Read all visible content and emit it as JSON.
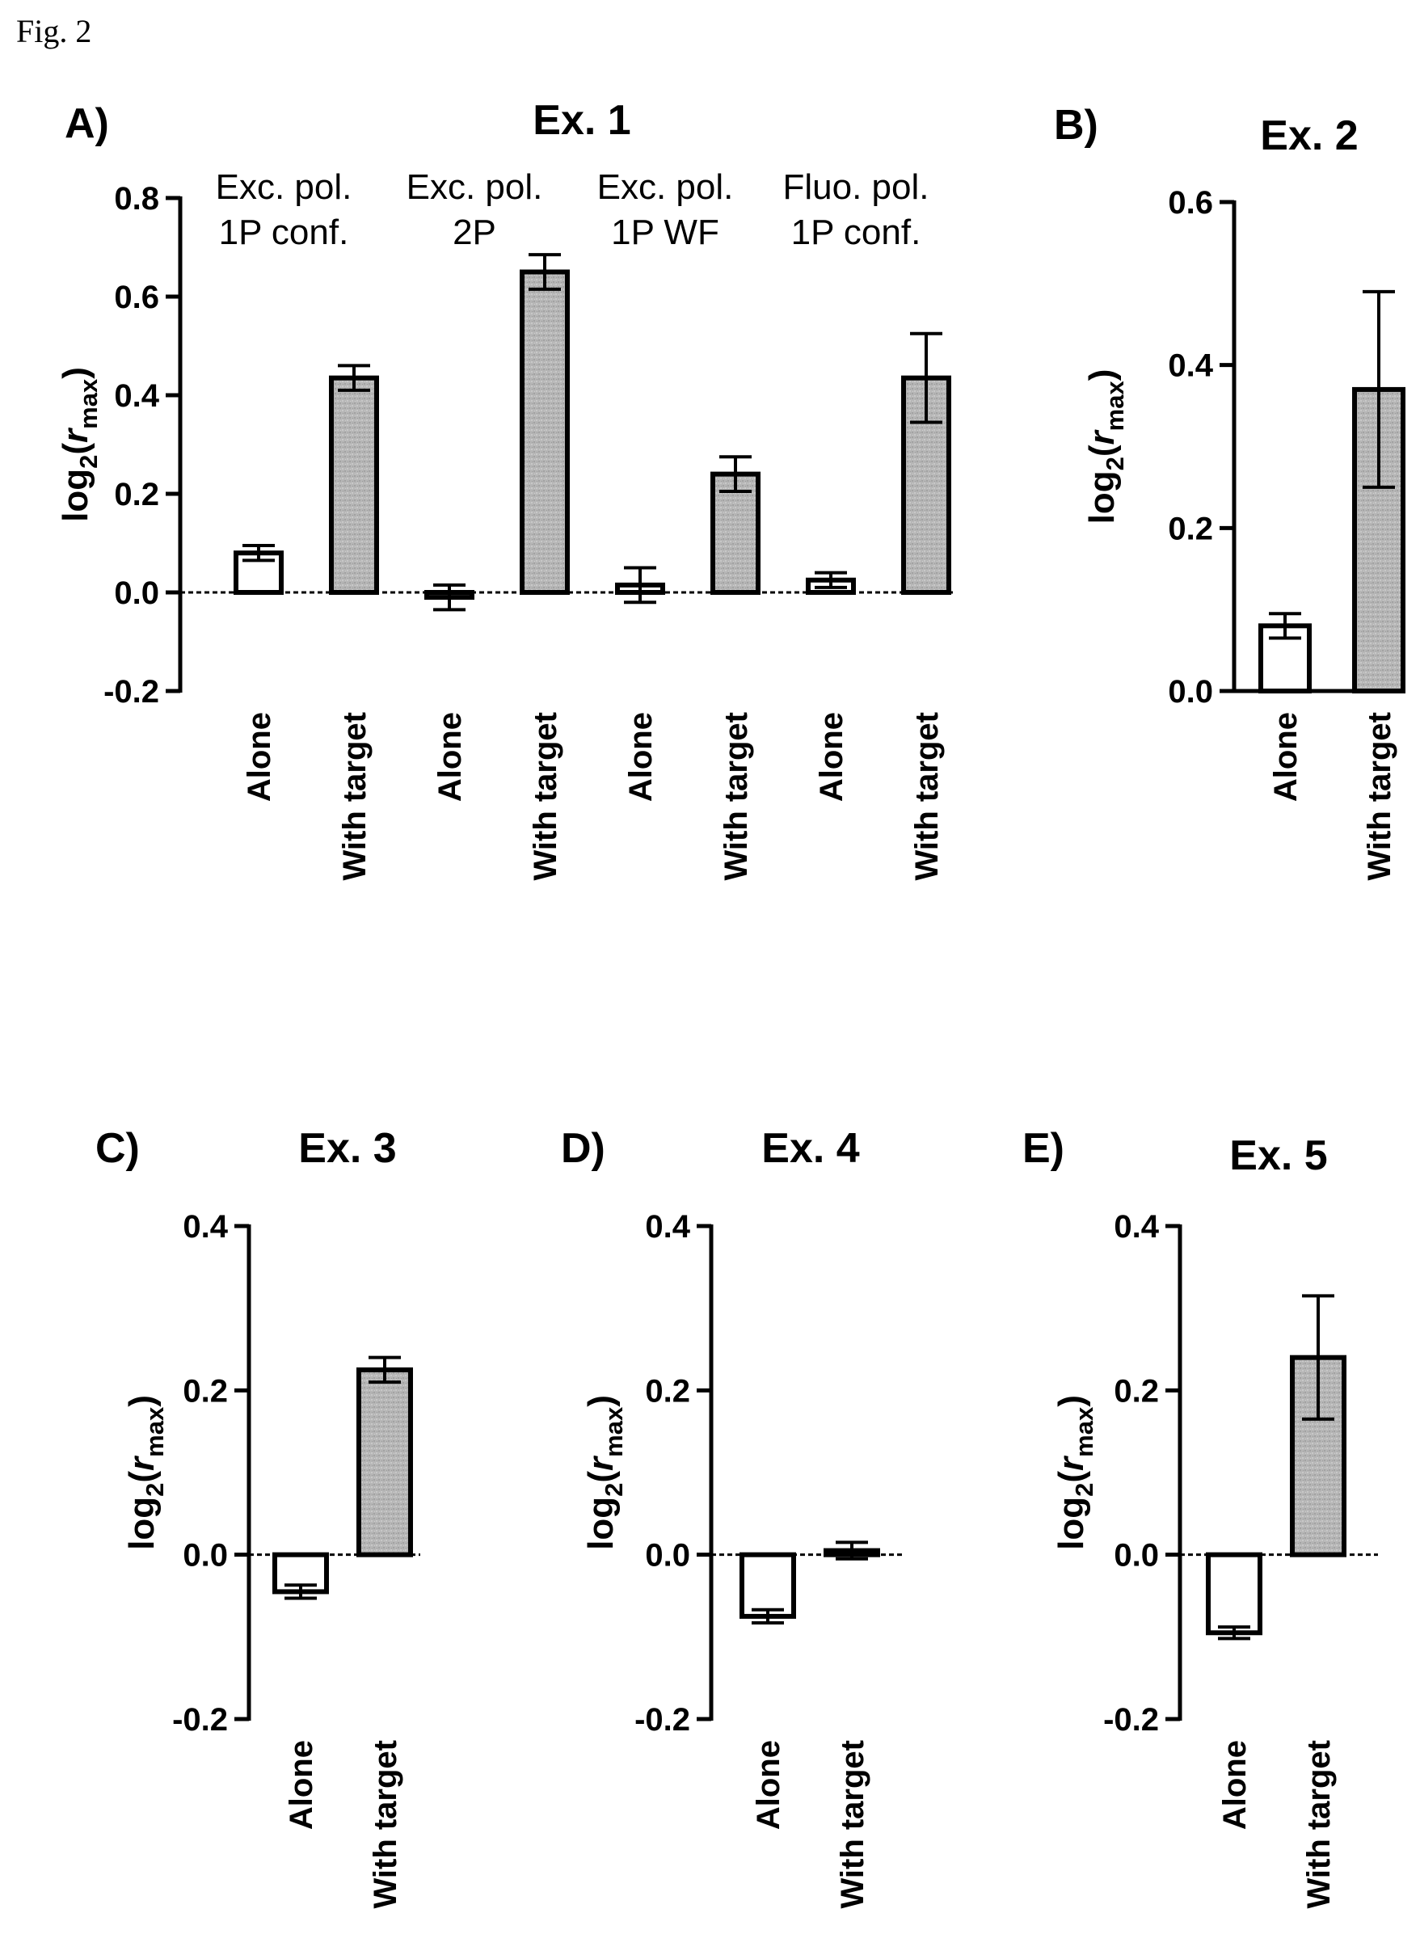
{
  "figure_label": "Fig. 2",
  "chart_data": [
    {
      "type": "bar",
      "panel": "A)",
      "title": "Ex. 1",
      "ylabel": {
        "prefix": "log",
        "sub": "2",
        "open": "(",
        "var": "r",
        "var_sub": "max",
        "close": ")"
      },
      "ylim": [
        -0.2,
        0.8
      ],
      "yticks": [
        -0.2,
        0.0,
        0.2,
        0.4,
        0.6,
        0.8
      ],
      "tick_labels": [
        "-0.2",
        "0.0",
        "0.2",
        "0.4",
        "0.6",
        "0.8"
      ],
      "baseline_dashed": true,
      "groups": [
        {
          "label_lines": [
            "Exc. pol.",
            "1P conf."
          ],
          "categories": [
            "Alone",
            "With target"
          ],
          "values": [
            0.08,
            0.435
          ],
          "errors": [
            0.015,
            0.025
          ]
        },
        {
          "label_lines": [
            "Exc. pol.",
            "2P"
          ],
          "categories": [
            "Alone",
            "With target"
          ],
          "values": [
            -0.01,
            0.65
          ],
          "errors": [
            0.025,
            0.035
          ]
        },
        {
          "label_lines": [
            "Exc. pol.",
            "1P WF"
          ],
          "categories": [
            "Alone",
            "With target"
          ],
          "values": [
            0.015,
            0.24
          ],
          "errors": [
            0.035,
            0.035
          ]
        },
        {
          "label_lines": [
            "Fluo. pol.",
            "1P conf."
          ],
          "categories": [
            "Alone",
            "With target"
          ],
          "values": [
            0.025,
            0.435
          ],
          "errors": [
            0.015,
            0.09
          ]
        }
      ],
      "series_fill": {
        "Alone": "#ffffff",
        "With target": "#b4b4b4"
      }
    },
    {
      "type": "bar",
      "panel": "B)",
      "title": "Ex. 2",
      "ylabel": {
        "prefix": "log",
        "sub": "2",
        "open": "(",
        "var": "r",
        "var_sub": "max",
        "close": ")"
      },
      "ylim": [
        0.0,
        0.6
      ],
      "yticks": [
        0.0,
        0.2,
        0.4,
        0.6
      ],
      "tick_labels": [
        "0.0",
        "0.2",
        "0.4",
        "0.6"
      ],
      "baseline_dashed": false,
      "groups": [
        {
          "label_lines": [],
          "categories": [
            "Alone",
            "With target"
          ],
          "values": [
            0.08,
            0.37
          ],
          "errors": [
            0.015,
            0.12
          ]
        }
      ],
      "series_fill": {
        "Alone": "#ffffff",
        "With target": "#b4b4b4"
      }
    },
    {
      "type": "bar",
      "panel": "C)",
      "title": "Ex. 3",
      "ylabel": {
        "prefix": "log",
        "sub": "2",
        "open": "(",
        "var": "r",
        "var_sub": "max",
        "close": ")"
      },
      "ylim": [
        -0.2,
        0.4
      ],
      "yticks": [
        -0.2,
        0.0,
        0.2,
        0.4
      ],
      "tick_labels": [
        "-0.2",
        "0.0",
        "0.2",
        "0.4"
      ],
      "baseline_dashed": true,
      "groups": [
        {
          "label_lines": [],
          "categories": [
            "Alone",
            "With target"
          ],
          "values": [
            -0.045,
            0.225
          ],
          "errors": [
            0.008,
            0.015
          ]
        }
      ],
      "series_fill": {
        "Alone": "#ffffff",
        "With target": "#b4b4b4"
      }
    },
    {
      "type": "bar",
      "panel": "D)",
      "title": "Ex. 4",
      "ylabel": {
        "prefix": "log",
        "sub": "2",
        "open": "(",
        "var": "r",
        "var_sub": "max",
        "close": ")"
      },
      "ylim": [
        -0.2,
        0.4
      ],
      "yticks": [
        -0.2,
        0.0,
        0.2,
        0.4
      ],
      "tick_labels": [
        "-0.2",
        "0.0",
        "0.2",
        "0.4"
      ],
      "baseline_dashed": true,
      "groups": [
        {
          "label_lines": [],
          "categories": [
            "Alone",
            "With target"
          ],
          "values": [
            -0.075,
            0.005
          ],
          "errors": [
            0.008,
            0.01
          ]
        }
      ],
      "series_fill": {
        "Alone": "#ffffff",
        "With target": "#b4b4b4"
      }
    },
    {
      "type": "bar",
      "panel": "E)",
      "title": "Ex. 5",
      "ylabel": {
        "prefix": "log",
        "sub": "2",
        "open": "(",
        "var": "r",
        "var_sub": "max",
        "close": ")"
      },
      "ylim": [
        -0.2,
        0.4
      ],
      "yticks": [
        -0.2,
        0.0,
        0.2,
        0.4
      ],
      "tick_labels": [
        "-0.2",
        "0.0",
        "0.2",
        "0.4"
      ],
      "baseline_dashed": true,
      "groups": [
        {
          "label_lines": [],
          "categories": [
            "Alone",
            "With target"
          ],
          "values": [
            -0.095,
            0.24
          ],
          "errors": [
            0.007,
            0.075
          ]
        }
      ],
      "series_fill": {
        "Alone": "#ffffff",
        "With target": "#b4b4b4"
      }
    }
  ]
}
